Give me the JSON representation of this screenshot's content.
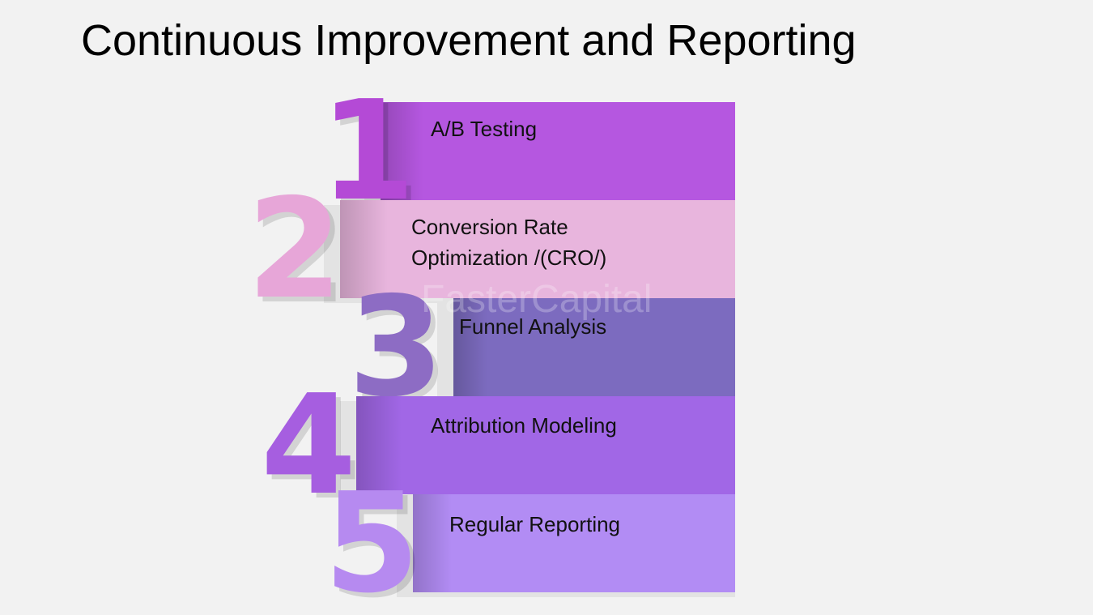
{
  "header": {
    "title": "Continuous Improvement and Reporting"
  },
  "watermark": "FasterCapital",
  "items": [
    {
      "number": "1",
      "lines": [
        "A/B Testing"
      ]
    },
    {
      "number": "2",
      "lines": [
        "Conversion Rate",
        "Optimization /(CRO/)"
      ]
    },
    {
      "number": "3",
      "lines": [
        "Funnel Analysis"
      ]
    },
    {
      "number": "4",
      "lines": [
        "Attribution Modeling"
      ]
    },
    {
      "number": "5",
      "lines": [
        "Regular Reporting"
      ]
    }
  ]
}
